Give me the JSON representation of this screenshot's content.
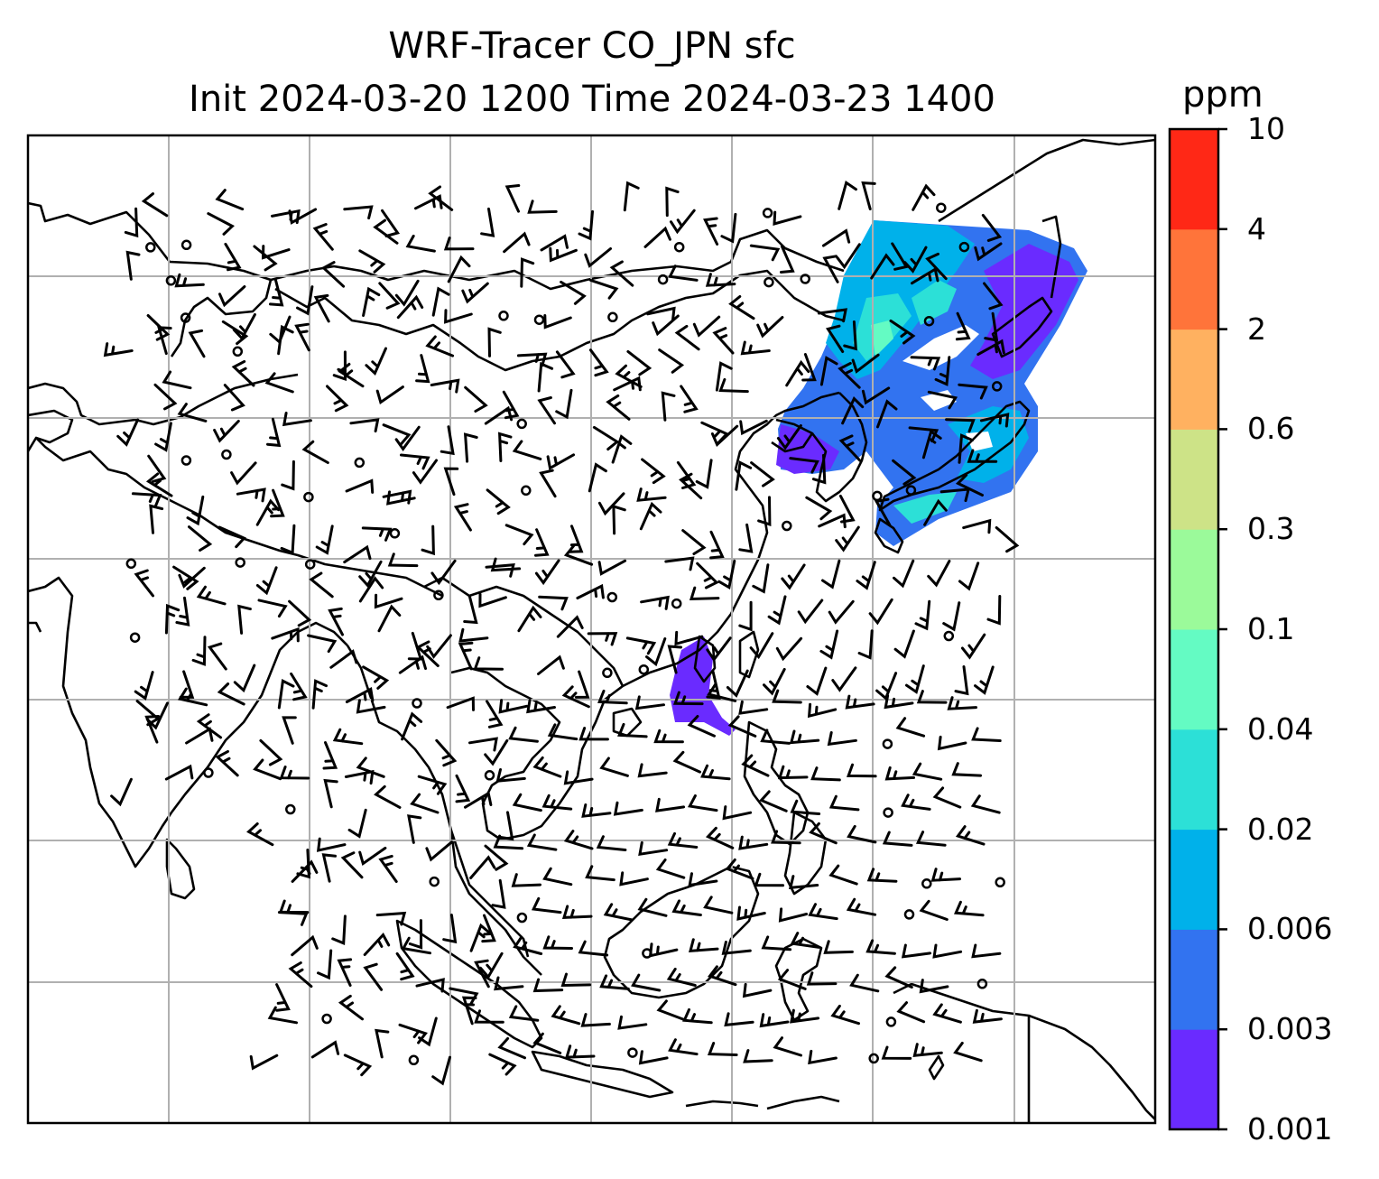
{
  "title": {
    "line1": "WRF-Tracer CO_JPN sfc",
    "line2": "Init 2024-03-20 1200 Time 2024-03-23 1400"
  },
  "colorbar": {
    "unit": "ppm",
    "levels": [
      "0.001",
      "0.003",
      "0.006",
      "0.02",
      "0.04",
      "0.1",
      "0.3",
      "0.6",
      "2",
      "4",
      "10"
    ],
    "colors": [
      "#6a2bff",
      "#3273f0",
      "#00b1ea",
      "#2ce0d7",
      "#64fbc3",
      "#9bfa9a",
      "#cde387",
      "#ffb160",
      "#ff743a",
      "#ff2816"
    ]
  },
  "map": {
    "projection": "plate-carree",
    "gridlines": true,
    "plume_colors": {
      "main": "#3273f0",
      "edge": "#6a2bff",
      "core": "#00b1ea",
      "hot": "#64fbc3",
      "hot2": "#9bfa9a"
    },
    "barb_spacing_note": "wind barbs and calm circles shown"
  }
}
